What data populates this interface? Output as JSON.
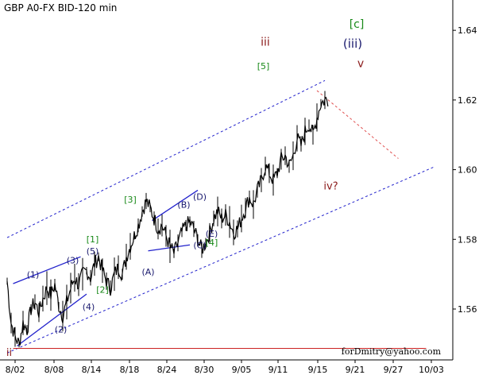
{
  "chart_data": {
    "type": "line",
    "title": "GBP A0-FX BID-120 min",
    "watermark": "forDmitry@yahoo.com",
    "x_ticks": [
      "8/02",
      "8/08",
      "8/14",
      "8/18",
      "8/24",
      "8/30",
      "9/05",
      "9/11",
      "9/15",
      "9/21",
      "9/27",
      "10/03"
    ],
    "y_ticks": [
      "1.56",
      "1.58",
      "1.60",
      "1.62",
      "1.64"
    ],
    "ylim": [
      1.5454,
      1.6487
    ],
    "grid": false,
    "colors": {
      "price": "#000000",
      "channel": "#2222cc",
      "projection": "#e05050",
      "support": "#cc2222",
      "wave_green": "#1a8a1a",
      "wave_navy": "#1a1a6e",
      "wave_maroon": "#8b1a1a"
    },
    "series": [
      {
        "values": [
          1.568,
          1.556,
          1.552,
          1.55,
          1.556,
          1.554,
          1.56,
          1.562,
          1.559,
          1.563,
          1.566,
          1.564,
          1.567,
          1.561,
          1.558,
          1.562,
          1.566,
          1.569,
          1.567,
          1.57,
          1.571,
          1.569,
          1.573,
          1.575,
          1.571,
          1.568,
          1.566,
          1.57,
          1.572,
          1.57,
          1.575,
          1.578,
          1.581,
          1.584,
          1.588,
          1.591,
          1.589,
          1.586,
          1.583,
          1.584,
          1.581,
          1.578,
          1.576,
          1.579,
          1.582,
          1.584,
          1.585,
          1.583,
          1.58,
          1.577,
          1.579,
          1.582,
          1.586,
          1.588,
          1.586,
          1.587,
          1.585,
          1.582,
          1.583,
          1.586,
          1.589,
          1.592,
          1.59,
          1.594,
          1.597,
          1.601,
          1.599,
          1.597,
          1.599,
          1.603,
          1.604,
          1.601,
          1.604,
          1.609,
          1.607,
          1.611,
          1.613,
          1.61,
          1.615,
          1.619,
          1.62
        ]
      }
    ],
    "channels": [
      {
        "from": [
          0,
          1.5805
        ],
        "to": [
          80,
          1.6256
        ],
        "style": "dashed",
        "color": "channel"
      },
      {
        "from": [
          0,
          1.5474
        ],
        "to": [
          107.5,
          1.6008
        ],
        "style": "dashed",
        "color": "channel"
      }
    ],
    "projections": [
      {
        "from": [
          78,
          1.6227
        ],
        "to": [
          98.5,
          1.6032
        ],
        "style": "dashed",
        "color": "projection"
      }
    ],
    "support": {
      "y": 1.5487,
      "x0": 1.5,
      "x1": 105.5,
      "color": "support"
    },
    "trendlines": [
      {
        "from": [
          1.5,
          1.5673
        ],
        "to": [
          18.5,
          1.575
        ]
      },
      {
        "from": [
          2.5,
          1.5494
        ],
        "to": [
          20,
          1.5643
        ]
      },
      {
        "from": [
          35.5,
          1.5767
        ],
        "to": [
          46,
          1.5784
        ]
      },
      {
        "from": [
          36.5,
          1.5854
        ],
        "to": [
          48,
          1.5941
        ]
      }
    ],
    "annotations": [
      {
        "text": "ii",
        "x": 0.5,
        "y": 1.5465,
        "color": "wave_maroon",
        "size": 13
      },
      {
        "text": "(1)",
        "x": 6.5,
        "y": 1.569,
        "color": "wave_navy",
        "size": 11
      },
      {
        "text": "(2)",
        "x": 13.5,
        "y": 1.5533,
        "color": "wave_navy",
        "size": 11
      },
      {
        "text": "(3)",
        "x": 16.5,
        "y": 1.5731,
        "color": "wave_navy",
        "size": 11
      },
      {
        "text": "(4)",
        "x": 20.5,
        "y": 1.5598,
        "color": "wave_navy",
        "size": 11
      },
      {
        "text": "(5)",
        "x": 21.5,
        "y": 1.5757,
        "color": "wave_navy",
        "size": 11
      },
      {
        "text": "[1]",
        "x": 21.5,
        "y": 1.5791,
        "color": "wave_green",
        "size": 11
      },
      {
        "text": "[2]",
        "x": 24,
        "y": 1.5647,
        "color": "wave_green",
        "size": 11
      },
      {
        "text": "[3]",
        "x": 31,
        "y": 1.5905,
        "color": "wave_green",
        "size": 11
      },
      {
        "text": "(A)",
        "x": 35.5,
        "y": 1.5698,
        "color": "wave_navy",
        "size": 11
      },
      {
        "text": "(B)",
        "x": 44.5,
        "y": 1.5891,
        "color": "wave_navy",
        "size": 11
      },
      {
        "text": "(C)",
        "x": 48.5,
        "y": 1.5774,
        "color": "wave_navy",
        "size": 11
      },
      {
        "text": "(D)",
        "x": 48.5,
        "y": 1.5914,
        "color": "wave_navy",
        "size": 11
      },
      {
        "text": "(E)",
        "x": 51.5,
        "y": 1.5808,
        "color": "wave_navy",
        "size": 11
      },
      {
        "text": "[4]",
        "x": 51.5,
        "y": 1.5782,
        "color": "wave_green",
        "size": 11
      },
      {
        "text": "[5]",
        "x": 64.5,
        "y": 1.6289,
        "color": "wave_green",
        "size": 11
      },
      {
        "text": "iii",
        "x": 65,
        "y": 1.6356,
        "color": "wave_maroon",
        "size": 14
      },
      {
        "text": "iv?",
        "x": 81.5,
        "y": 1.5943,
        "color": "wave_maroon",
        "size": 13
      },
      {
        "text": "[c]",
        "x": 88,
        "y": 1.6407,
        "color": "wave_green",
        "size": 14
      },
      {
        "text": "(iii)",
        "x": 87,
        "y": 1.635,
        "color": "wave_navy",
        "size": 15
      },
      {
        "text": "v",
        "x": 89,
        "y": 1.6294,
        "color": "wave_maroon",
        "size": 14
      }
    ]
  }
}
